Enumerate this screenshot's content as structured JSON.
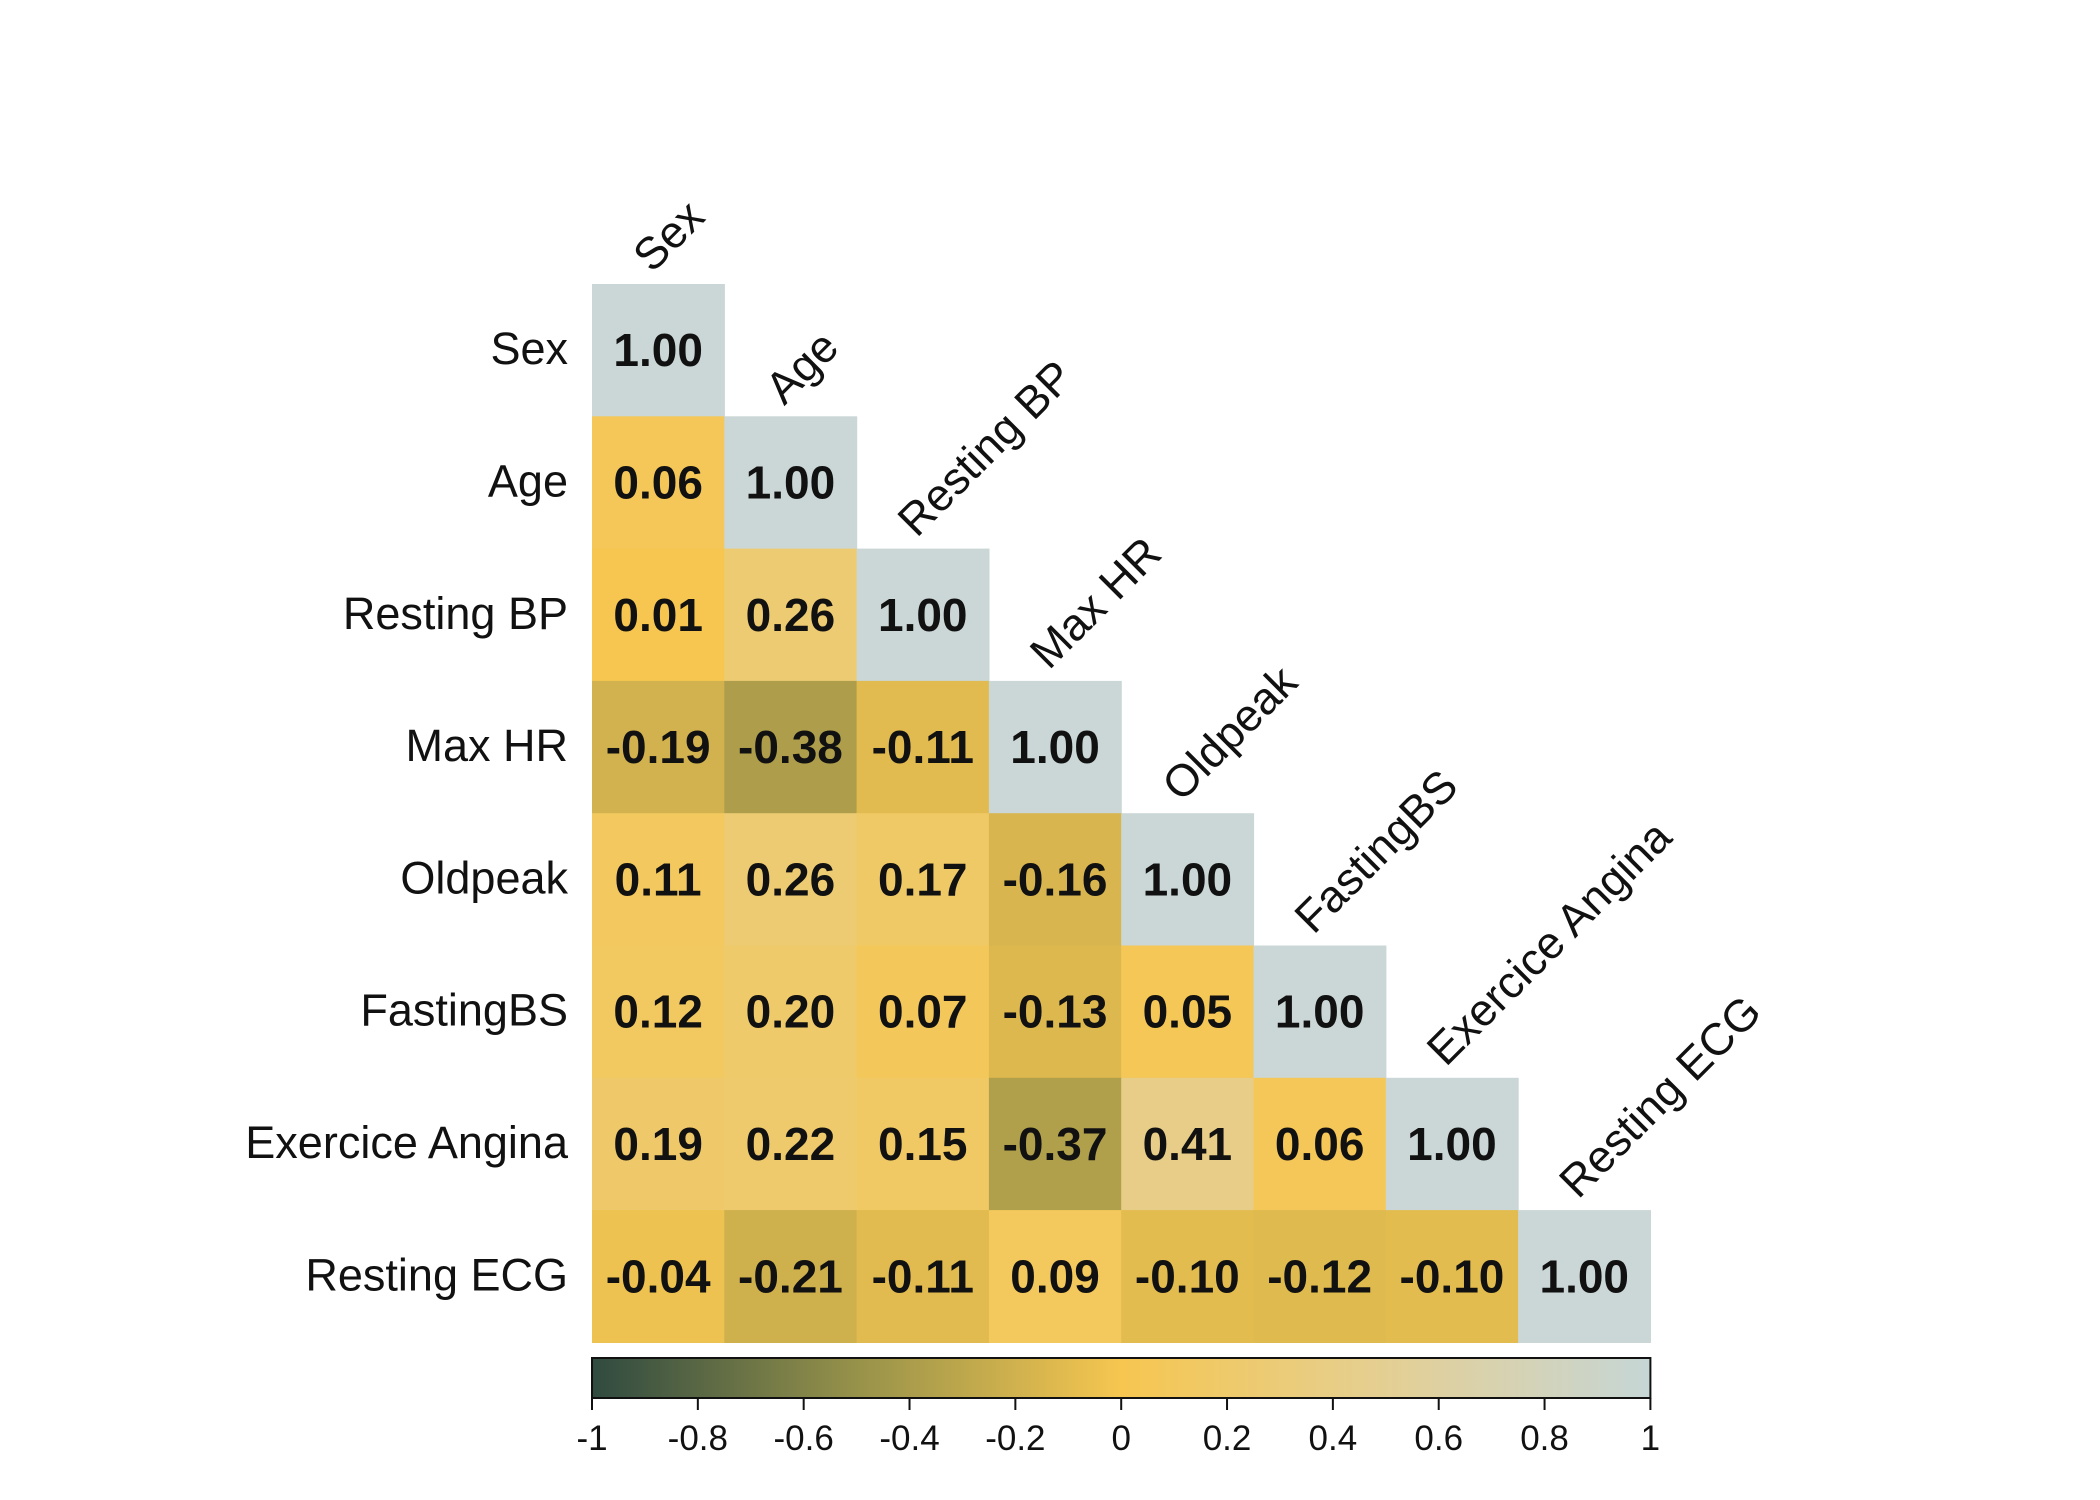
{
  "chart_data": {
    "type": "heatmap",
    "subtype": "lower-triangular correlation matrix",
    "variables": [
      "Sex",
      "Age",
      "Resting BP",
      "Max HR",
      "Oldpeak",
      "FastingBS",
      "Exercice Angina",
      "Resting ECG"
    ],
    "matrix": [
      [
        1.0
      ],
      [
        0.06,
        1.0
      ],
      [
        0.01,
        0.26,
        1.0
      ],
      [
        -0.19,
        -0.38,
        -0.11,
        1.0
      ],
      [
        0.11,
        0.26,
        0.17,
        -0.16,
        1.0
      ],
      [
        0.12,
        0.2,
        0.07,
        -0.13,
        0.05,
        1.0
      ],
      [
        0.19,
        0.22,
        0.15,
        -0.37,
        0.41,
        0.06,
        1.0
      ],
      [
        -0.04,
        -0.21,
        -0.11,
        0.09,
        -0.1,
        -0.12,
        -0.1,
        1.0
      ]
    ],
    "value_format": "2 decimals",
    "colorbar": {
      "range": [
        -1,
        1
      ],
      "ticks": [
        "-1",
        "-0.8",
        "-0.6",
        "-0.4",
        "-0.2",
        "0",
        "0.2",
        "0.4",
        "0.6",
        "0.8",
        "1"
      ],
      "colors": [
        {
          "value": -1,
          "color": "#2f4a40"
        },
        {
          "value": -0.5,
          "color": "#97924a"
        },
        {
          "value": 0,
          "color": "#f6c650"
        },
        {
          "value": 0.5,
          "color": "#e4cf93"
        },
        {
          "value": 1,
          "color": "#c6d6d6"
        }
      ],
      "diagonal_color": "#cad7d6"
    },
    "title": "",
    "xlabel": "",
    "ylabel": "",
    "grid": false
  }
}
